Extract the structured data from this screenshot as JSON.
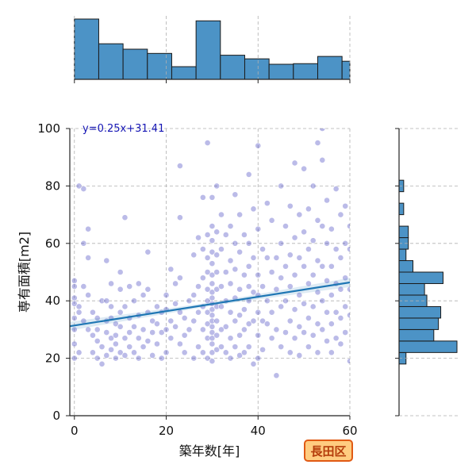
{
  "chart_data": {
    "type": "scatter",
    "xlabel": "築年数[年]",
    "ylabel": "専有面積[m2]",
    "xlim": [
      -1,
      60
    ],
    "ylim": [
      0,
      100
    ],
    "xticks": [
      0,
      20,
      40,
      60
    ],
    "yticks": [
      0,
      20,
      40,
      60,
      80,
      100
    ],
    "x_tick_labels": [
      "0",
      "20",
      "40",
      "60"
    ],
    "y_tick_labels": [
      "0",
      "20",
      "40",
      "60",
      "80",
      "100"
    ],
    "grid": true,
    "regression": {
      "slope": 0.25,
      "intercept": 31.41,
      "label": "y=0.25x+31.41"
    },
    "colors": {
      "points": "#3c3cbe",
      "regression": "#1f77b4",
      "histogram": "#4c93c6",
      "grid": "#b0b0b0"
    },
    "badge": "長田区",
    "marginal_x_hist": {
      "bin_edges": [
        0,
        5.3,
        10.6,
        15.9,
        21.2,
        26.5,
        31.8,
        37.1,
        42.4,
        47.7,
        53.0,
        58.3,
        60
      ],
      "counts": [
        100,
        59,
        50,
        43,
        21,
        97,
        40,
        34,
        25,
        26,
        38,
        30
      ]
    },
    "marginal_y_hist": {
      "bin_edges": [
        18,
        22,
        26,
        30,
        34,
        38,
        42,
        46,
        50,
        54,
        58,
        62,
        66,
        70,
        74,
        78,
        82
      ],
      "counts": [
        3,
        25,
        15,
        17,
        18,
        12,
        11,
        19,
        6,
        3,
        4,
        4,
        0,
        2,
        0,
        2,
        1
      ]
    },
    "points": [
      [
        0,
        20
      ],
      [
        0,
        25
      ],
      [
        0,
        30
      ],
      [
        0,
        34
      ],
      [
        0,
        39
      ],
      [
        0,
        41
      ],
      [
        0,
        45
      ],
      [
        0,
        47
      ],
      [
        1,
        80
      ],
      [
        2,
        79
      ],
      [
        2,
        60
      ],
      [
        2,
        45
      ],
      [
        1,
        38
      ],
      [
        1,
        36
      ],
      [
        2,
        33
      ],
      [
        1,
        22
      ],
      [
        3,
        30
      ],
      [
        3,
        65
      ],
      [
        3,
        55
      ],
      [
        3,
        42
      ],
      [
        4,
        36
      ],
      [
        4,
        28
      ],
      [
        4,
        22
      ],
      [
        5,
        34
      ],
      [
        5,
        30
      ],
      [
        5,
        26
      ],
      [
        5,
        20
      ],
      [
        6,
        40
      ],
      [
        6,
        24
      ],
      [
        6,
        18
      ],
      [
        7,
        54
      ],
      [
        7,
        40
      ],
      [
        7,
        33
      ],
      [
        7,
        29
      ],
      [
        7,
        21
      ],
      [
        8,
        46
      ],
      [
        8,
        38
      ],
      [
        8,
        34
      ],
      [
        8,
        27
      ],
      [
        8,
        23
      ],
      [
        9,
        32
      ],
      [
        9,
        28
      ],
      [
        9,
        25
      ],
      [
        9,
        20
      ],
      [
        10,
        50
      ],
      [
        10,
        44
      ],
      [
        10,
        36
      ],
      [
        10,
        31
      ],
      [
        10,
        22
      ],
      [
        11,
        69
      ],
      [
        11,
        38
      ],
      [
        11,
        27
      ],
      [
        11,
        21
      ],
      [
        12,
        45
      ],
      [
        12,
        34
      ],
      [
        12,
        29
      ],
      [
        12,
        24
      ],
      [
        13,
        40
      ],
      [
        13,
        31
      ],
      [
        13,
        22
      ],
      [
        14,
        46
      ],
      [
        14,
        35
      ],
      [
        14,
        27
      ],
      [
        14,
        20
      ],
      [
        15,
        42
      ],
      [
        15,
        30
      ],
      [
        15,
        24
      ],
      [
        16,
        57
      ],
      [
        16,
        44
      ],
      [
        16,
        36
      ],
      [
        16,
        26
      ],
      [
        17,
        33
      ],
      [
        17,
        29
      ],
      [
        17,
        21
      ],
      [
        18,
        38
      ],
      [
        18,
        32
      ],
      [
        18,
        25
      ],
      [
        19,
        36
      ],
      [
        19,
        29
      ],
      [
        19,
        20
      ],
      [
        20,
        42
      ],
      [
        20,
        37
      ],
      [
        20,
        30
      ],
      [
        20,
        22
      ],
      [
        21,
        51
      ],
      [
        21,
        33
      ],
      [
        21,
        27
      ],
      [
        22,
        46
      ],
      [
        22,
        39
      ],
      [
        22,
        31
      ],
      [
        23,
        87
      ],
      [
        23,
        69
      ],
      [
        23,
        48
      ],
      [
        23,
        36
      ],
      [
        23,
        25
      ],
      [
        24,
        34
      ],
      [
        24,
        28
      ],
      [
        24,
        22
      ],
      [
        25,
        40
      ],
      [
        25,
        30
      ],
      [
        26,
        56
      ],
      [
        26,
        42
      ],
      [
        26,
        33
      ],
      [
        26,
        20
      ],
      [
        27,
        62
      ],
      [
        27,
        45
      ],
      [
        27,
        36
      ],
      [
        27,
        24
      ],
      [
        28,
        76
      ],
      [
        28,
        58
      ],
      [
        28,
        48
      ],
      [
        28,
        38
      ],
      [
        28,
        30
      ],
      [
        28,
        22
      ],
      [
        29,
        95
      ],
      [
        29,
        63
      ],
      [
        29,
        55
      ],
      [
        29,
        50
      ],
      [
        29,
        44
      ],
      [
        29,
        40
      ],
      [
        29,
        36
      ],
      [
        29,
        32
      ],
      [
        29,
        27
      ],
      [
        29,
        20
      ],
      [
        30,
        76
      ],
      [
        30,
        66
      ],
      [
        30,
        61
      ],
      [
        30,
        57
      ],
      [
        30,
        53
      ],
      [
        30,
        49
      ],
      [
        30,
        46
      ],
      [
        30,
        43
      ],
      [
        30,
        41
      ],
      [
        30,
        39
      ],
      [
        30,
        37
      ],
      [
        30,
        35
      ],
      [
        30,
        33
      ],
      [
        30,
        31
      ],
      [
        30,
        29
      ],
      [
        30,
        27
      ],
      [
        30,
        25
      ],
      [
        30,
        22
      ],
      [
        30,
        19
      ],
      [
        31,
        80
      ],
      [
        31,
        64
      ],
      [
        31,
        56
      ],
      [
        31,
        50
      ],
      [
        31,
        44
      ],
      [
        31,
        38
      ],
      [
        31,
        33
      ],
      [
        31,
        28
      ],
      [
        31,
        23
      ],
      [
        32,
        70
      ],
      [
        32,
        58
      ],
      [
        32,
        45
      ],
      [
        32,
        38
      ],
      [
        32,
        30
      ],
      [
        32,
        24
      ],
      [
        33,
        63
      ],
      [
        33,
        50
      ],
      [
        33,
        40
      ],
      [
        33,
        31
      ],
      [
        33,
        22
      ],
      [
        34,
        66
      ],
      [
        34,
        54
      ],
      [
        34,
        46
      ],
      [
        34,
        36
      ],
      [
        34,
        27
      ],
      [
        34,
        20
      ],
      [
        35,
        77
      ],
      [
        35,
        60
      ],
      [
        35,
        51
      ],
      [
        35,
        41
      ],
      [
        35,
        33
      ],
      [
        35,
        24
      ],
      [
        36,
        70
      ],
      [
        36,
        57
      ],
      [
        36,
        44
      ],
      [
        36,
        35
      ],
      [
        36,
        28
      ],
      [
        36,
        21
      ],
      [
        37,
        63
      ],
      [
        37,
        49
      ],
      [
        37,
        37
      ],
      [
        37,
        30
      ],
      [
        37,
        22
      ],
      [
        38,
        84
      ],
      [
        38,
        60
      ],
      [
        38,
        52
      ],
      [
        38,
        45
      ],
      [
        38,
        40
      ],
      [
        38,
        32
      ],
      [
        38,
        24
      ],
      [
        39,
        72
      ],
      [
        39,
        55
      ],
      [
        39,
        43
      ],
      [
        39,
        33
      ],
      [
        39,
        18
      ],
      [
        40,
        94
      ],
      [
        40,
        65
      ],
      [
        40,
        49
      ],
      [
        40,
        42
      ],
      [
        40,
        36
      ],
      [
        40,
        28
      ],
      [
        40,
        20
      ],
      [
        41,
        58
      ],
      [
        41,
        45
      ],
      [
        41,
        33
      ],
      [
        41,
        23
      ],
      [
        42,
        74
      ],
      [
        42,
        55
      ],
      [
        42,
        40
      ],
      [
        42,
        32
      ],
      [
        43,
        68
      ],
      [
        43,
        50
      ],
      [
        43,
        36
      ],
      [
        43,
        27
      ],
      [
        44,
        55
      ],
      [
        44,
        44
      ],
      [
        44,
        30
      ],
      [
        44,
        14
      ],
      [
        45,
        80
      ],
      [
        45,
        60
      ],
      [
        45,
        48
      ],
      [
        45,
        38
      ],
      [
        45,
        24
      ],
      [
        46,
        66
      ],
      [
        46,
        52
      ],
      [
        46,
        40
      ],
      [
        46,
        29
      ],
      [
        47,
        73
      ],
      [
        47,
        56
      ],
      [
        47,
        45
      ],
      [
        47,
        33
      ],
      [
        47,
        22
      ],
      [
        48,
        88
      ],
      [
        48,
        62
      ],
      [
        48,
        49
      ],
      [
        48,
        37
      ],
      [
        48,
        27
      ],
      [
        49,
        70
      ],
      [
        49,
        55
      ],
      [
        49,
        42
      ],
      [
        49,
        31
      ],
      [
        49,
        21
      ],
      [
        50,
        86
      ],
      [
        50,
        64
      ],
      [
        50,
        52
      ],
      [
        50,
        39
      ],
      [
        50,
        29
      ],
      [
        51,
        72
      ],
      [
        51,
        58
      ],
      [
        51,
        46
      ],
      [
        51,
        34
      ],
      [
        51,
        24
      ],
      [
        52,
        80
      ],
      [
        52,
        61
      ],
      [
        52,
        49
      ],
      [
        52,
        38
      ],
      [
        52,
        28
      ],
      [
        53,
        95
      ],
      [
        53,
        68
      ],
      [
        53,
        54
      ],
      [
        53,
        43
      ],
      [
        53,
        32
      ],
      [
        53,
        22
      ],
      [
        54,
        100
      ],
      [
        54,
        89
      ],
      [
        54,
        66
      ],
      [
        54,
        52
      ],
      [
        54,
        40
      ],
      [
        54,
        30
      ],
      [
        55,
        75
      ],
      [
        55,
        60
      ],
      [
        55,
        47
      ],
      [
        55,
        36
      ],
      [
        55,
        26
      ],
      [
        56,
        65
      ],
      [
        56,
        52
      ],
      [
        56,
        42
      ],
      [
        56,
        32
      ],
      [
        56,
        22
      ],
      [
        57,
        79
      ],
      [
        57,
        58
      ],
      [
        57,
        46
      ],
      [
        57,
        36
      ],
      [
        57,
        27
      ],
      [
        58,
        70
      ],
      [
        58,
        55
      ],
      [
        58,
        44
      ],
      [
        58,
        34
      ],
      [
        58,
        25
      ],
      [
        59,
        73
      ],
      [
        59,
        60
      ],
      [
        59,
        48
      ],
      [
        59,
        38
      ],
      [
        59,
        29
      ],
      [
        60,
        66
      ],
      [
        60,
        58
      ],
      [
        60,
        44
      ],
      [
        60,
        35
      ],
      [
        60,
        19
      ]
    ]
  }
}
